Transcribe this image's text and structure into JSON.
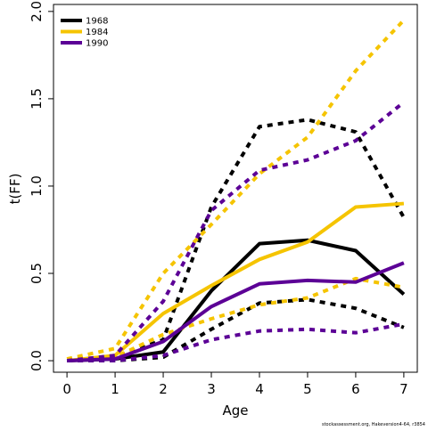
{
  "chart_data": {
    "type": "line",
    "xlabel": "Age",
    "ylabel": "t(FF)",
    "footer": "stockassessment.org, Hakeversion4-64, r3854",
    "x": [
      0,
      1,
      2,
      3,
      4,
      5,
      6,
      7
    ],
    "xlim": [
      -0.28,
      7.28
    ],
    "ylim": [
      -0.066,
      2.04
    ],
    "xticks": [
      0,
      1,
      2,
      3,
      4,
      5,
      6,
      7
    ],
    "yticks": [
      {
        "value": 0,
        "label": "0.0"
      },
      {
        "value": 0.5,
        "label": "0.5"
      },
      {
        "value": 1,
        "label": "1.0"
      },
      {
        "value": 1.5,
        "label": "1.5"
      },
      {
        "value": 2,
        "label": "2.0"
      }
    ],
    "legend": "top-left",
    "series": [
      {
        "name": "1968",
        "color": "#000000",
        "values": [
          0,
          0.01,
          0.05,
          0.4,
          0.67,
          0.69,
          0.63,
          0.38
        ],
        "upper": [
          0,
          0.02,
          0.12,
          0.88,
          1.34,
          1.38,
          1.31,
          0.82
        ],
        "lower": [
          0,
          0,
          0.02,
          0.18,
          0.33,
          0.35,
          0.3,
          0.19
        ]
      },
      {
        "name": "1984",
        "color": "#f5c400",
        "values": [
          0,
          0.03,
          0.27,
          0.43,
          0.58,
          0.68,
          0.88,
          0.9
        ],
        "upper": [
          0.01,
          0.07,
          0.5,
          0.78,
          1.07,
          1.28,
          1.66,
          1.95
        ],
        "lower": [
          0,
          0.02,
          0.15,
          0.24,
          0.32,
          0.36,
          0.47,
          0.42
        ]
      },
      {
        "name": "1990",
        "color": "#5c0096",
        "values": [
          0,
          0.01,
          0.11,
          0.31,
          0.44,
          0.46,
          0.45,
          0.56
        ],
        "upper": [
          0,
          0.03,
          0.34,
          0.86,
          1.09,
          1.15,
          1.26,
          1.48
        ],
        "lower": [
          0,
          0,
          0.03,
          0.12,
          0.17,
          0.18,
          0.16,
          0.21
        ]
      }
    ]
  }
}
